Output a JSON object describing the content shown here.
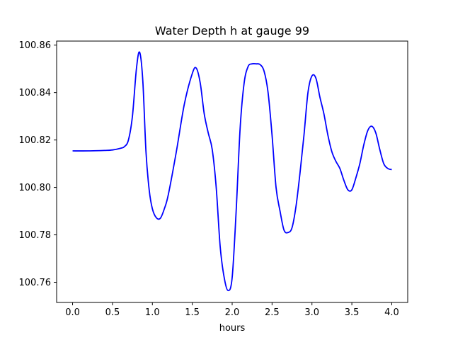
{
  "chart_data": {
    "type": "line",
    "title": "Water Depth h at gauge 99",
    "xlabel": "hours",
    "ylabel": "",
    "xlim": [
      -0.2,
      4.2
    ],
    "ylim": [
      100.7515,
      100.8617
    ],
    "grid": false,
    "xticks": [
      0.0,
      0.5,
      1.0,
      1.5,
      2.0,
      2.5,
      3.0,
      3.5,
      4.0
    ],
    "xtick_labels": [
      "0.0",
      "0.5",
      "1.0",
      "1.5",
      "2.0",
      "2.5",
      "3.0",
      "3.5",
      "4.0"
    ],
    "yticks": [
      100.76,
      100.78,
      100.8,
      100.82,
      100.84,
      100.86
    ],
    "ytick_labels": [
      "100.76",
      "100.78",
      "100.80",
      "100.82",
      "100.84",
      "100.86"
    ],
    "series": [
      {
        "color": "#0000ff",
        "x": [
          0.0,
          0.2,
          0.4,
          0.5,
          0.6,
          0.65,
          0.7,
          0.75,
          0.8,
          0.84,
          0.88,
          0.92,
          0.96,
          1.0,
          1.05,
          1.1,
          1.15,
          1.2,
          1.3,
          1.4,
          1.5,
          1.55,
          1.6,
          1.65,
          1.7,
          1.75,
          1.8,
          1.85,
          1.9,
          1.95,
          2.0,
          2.05,
          2.1,
          2.15,
          2.2,
          2.25,
          2.3,
          2.35,
          2.4,
          2.45,
          2.5,
          2.55,
          2.6,
          2.65,
          2.7,
          2.75,
          2.8,
          2.85,
          2.9,
          2.95,
          3.0,
          3.05,
          3.1,
          3.15,
          3.2,
          3.25,
          3.3,
          3.35,
          3.4,
          3.45,
          3.5,
          3.55,
          3.6,
          3.65,
          3.7,
          3.75,
          3.8,
          3.85,
          3.9,
          3.95,
          4.0
        ],
        "y": [
          100.8154,
          100.8154,
          100.8156,
          100.8158,
          100.8165,
          100.8172,
          100.82,
          100.83,
          100.85,
          100.857,
          100.845,
          100.815,
          100.799,
          100.791,
          100.7872,
          100.787,
          100.791,
          100.797,
          100.815,
          100.835,
          100.848,
          100.8503,
          100.844,
          100.831,
          100.823,
          100.816,
          100.8,
          100.775,
          100.762,
          100.7565,
          100.762,
          100.79,
          100.825,
          100.844,
          100.851,
          100.8521,
          100.8521,
          100.8518,
          100.849,
          100.84,
          100.822,
          100.8,
          100.79,
          100.782,
          100.781,
          100.783,
          100.792,
          100.806,
          100.822,
          100.84,
          100.847,
          100.846,
          100.838,
          100.831,
          100.822,
          100.815,
          100.811,
          100.808,
          100.803,
          100.799,
          100.799,
          100.804,
          100.81,
          100.818,
          100.824,
          100.8258,
          100.823,
          100.816,
          100.81,
          100.808,
          100.8075
        ]
      }
    ]
  }
}
